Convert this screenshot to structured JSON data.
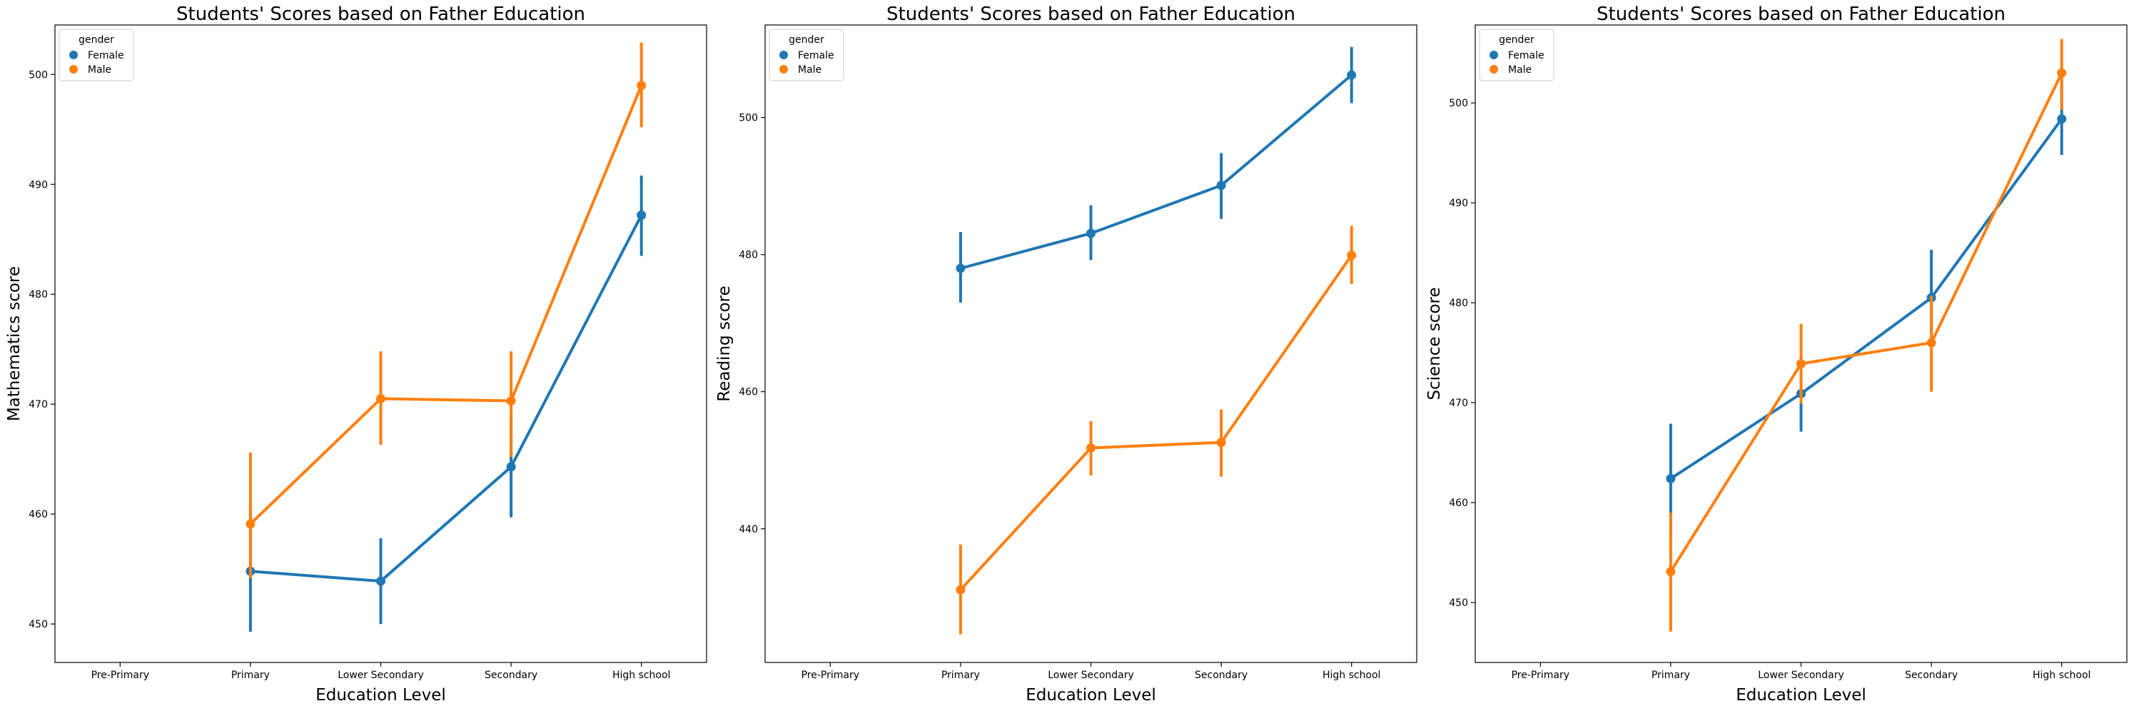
{
  "chart_data": [
    {
      "type": "line",
      "title": "Students' Scores based on Father Education",
      "xlabel": "Education Level",
      "ylabel": "Mathematics score",
      "categories": [
        "Pre-Primary",
        "Primary",
        "Lower Secondary",
        "Secondary",
        "High school"
      ],
      "ylim": [
        446.5,
        504.5
      ],
      "yticks": [
        450,
        460,
        470,
        480,
        490,
        500
      ],
      "grid": false,
      "legend": {
        "title": "gender",
        "position": "top-left"
      },
      "series": [
        {
          "name": "Female",
          "color": "#1f77b4",
          "values": [
            null,
            454.8,
            453.9,
            464.3,
            487.2
          ],
          "ci_low": [
            null,
            449.3,
            450.0,
            459.7,
            483.5
          ],
          "ci_high": [
            null,
            460.3,
            457.8,
            468.8,
            490.8
          ]
        },
        {
          "name": "Male",
          "color": "#ff7f0e",
          "values": [
            null,
            459.1,
            470.5,
            470.3,
            499.0
          ],
          "ci_low": [
            null,
            454.2,
            466.3,
            465.2,
            495.2
          ],
          "ci_high": [
            null,
            465.6,
            474.8,
            474.8,
            502.9
          ]
        }
      ]
    },
    {
      "type": "line",
      "title": "Students' Scores based on Father Education",
      "xlabel": "Education Level",
      "ylabel": "Reading score",
      "categories": [
        "Pre-Primary",
        "Primary",
        "Lower Secondary",
        "Secondary",
        "High school"
      ],
      "ylim": [
        420.5,
        513.5
      ],
      "yticks": [
        440,
        460,
        480,
        500
      ],
      "grid": false,
      "legend": {
        "title": "gender",
        "position": "top-left"
      },
      "series": [
        {
          "name": "Female",
          "color": "#1f77b4",
          "values": [
            null,
            478.0,
            483.1,
            490.1,
            506.2
          ],
          "ci_low": [
            null,
            473.0,
            479.2,
            485.2,
            502.1
          ],
          "ci_high": [
            null,
            483.3,
            487.2,
            494.8,
            510.3
          ]
        },
        {
          "name": "Male",
          "color": "#ff7f0e",
          "values": [
            null,
            431.1,
            451.8,
            452.6,
            479.9
          ],
          "ci_low": [
            null,
            424.6,
            447.8,
            447.6,
            475.7
          ],
          "ci_high": [
            null,
            437.7,
            455.7,
            457.4,
            484.2
          ]
        }
      ]
    },
    {
      "type": "line",
      "title": "Students' Scores based on Father Education",
      "xlabel": "Education Level",
      "ylabel": "Science score",
      "categories": [
        "Pre-Primary",
        "Primary",
        "Lower Secondary",
        "Secondary",
        "High school"
      ],
      "ylim": [
        444.0,
        507.8
      ],
      "yticks": [
        450,
        460,
        470,
        480,
        490,
        500
      ],
      "grid": false,
      "legend": {
        "title": "gender",
        "position": "top-left"
      },
      "series": [
        {
          "name": "Female",
          "color": "#1f77b4",
          "values": [
            null,
            462.4,
            470.9,
            480.5,
            498.4
          ],
          "ci_low": [
            null,
            456.8,
            467.1,
            475.6,
            494.8
          ],
          "ci_high": [
            null,
            467.9,
            474.5,
            485.3,
            502.1
          ]
        },
        {
          "name": "Male",
          "color": "#ff7f0e",
          "values": [
            null,
            453.1,
            473.9,
            476.0,
            503.0
          ],
          "ci_low": [
            null,
            447.1,
            469.9,
            471.1,
            499.3
          ],
          "ci_high": [
            null,
            459.0,
            477.9,
            480.7,
            506.4
          ]
        }
      ]
    }
  ]
}
